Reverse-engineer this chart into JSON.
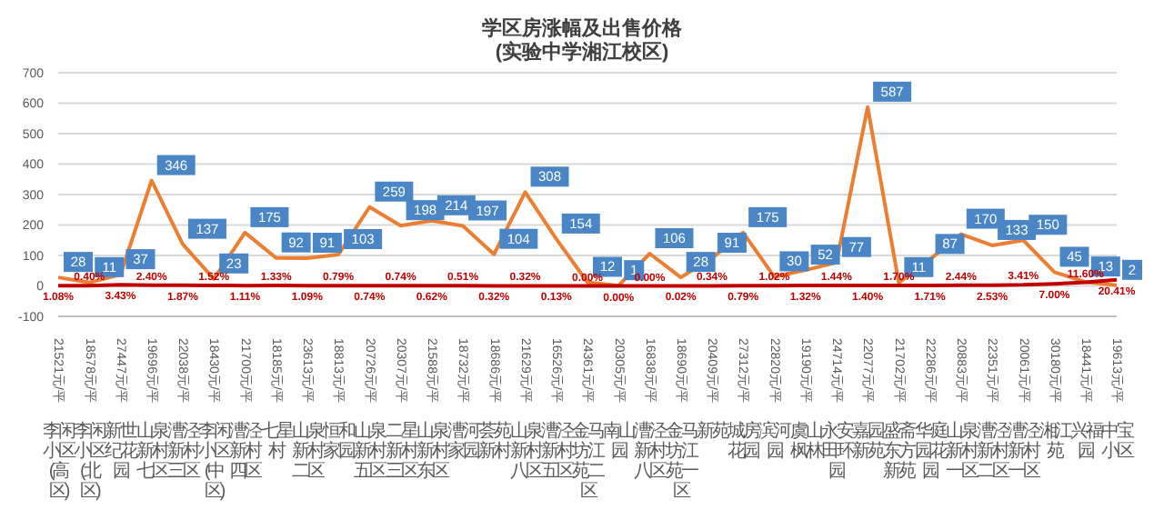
{
  "chart_data": {
    "type": "line",
    "title": "学区房涨幅及出售价格",
    "subtitle": "(实验中学湘江校区)",
    "categories": [
      "21521元/平李闲小区(高区)",
      "18578元/平李闲小区(北区)",
      "27447元/平新世纪花园",
      "19696元/平山泉新村七区",
      "22038元/平漕泾新村三区",
      "18430元/平李闲小区(中区)",
      "21700元/平漕泾新村四区",
      "18185元/平七星村",
      "23613元/平山泉新村二区",
      "18813元/平恒和家园",
      "20726元/平山泉新村五区",
      "20307元/平二星新村三区",
      "21588元/平山泉新村东区",
      "18732元/平漕河家园",
      "18686元/平荟苑新村",
      "21629元/平山泉新村八区",
      "16526元/平漕泾新村五区",
      "24361元/平金马坊江苑二区",
      "20305元/平南山园",
      "16838元/平漕泾新村八区",
      "18690元/平金马坊江苑一区",
      "20409元/平新苑",
      "27312元/平城房花园",
      "22820元/平滨河园",
      "19190元/平虞山枫林",
      "24714元/平永安田环园",
      "22077元/平嘉园新苑",
      "21702元/平盛斋东方新苑",
      "22286元/平华庭园花园",
      "20883元/平山泉新村一区",
      "22351元/平漕泾新村二区",
      "20061元/平漕泾新村一区",
      "30180元/平湘江苑",
      "18441元/平兴福园",
      "19613元/平中宝小区"
    ],
    "series": [
      {
        "color": "#ed7d31",
        "values": [
          28,
          11,
          37,
          346,
          137,
          23,
          175,
          92,
          91,
          103,
          259,
          198,
          214,
          197,
          104,
          308,
          154,
          12,
          1,
          106,
          28,
          91,
          175,
          30,
          52,
          77,
          587,
          11,
          87,
          170,
          133,
          150,
          45,
          13,
          2
        ]
      },
      {
        "color": "#c00000",
        "values": [
          1.08,
          0.4,
          3.43,
          2.4,
          1.87,
          1.52,
          1.11,
          1.33,
          1.09,
          0.79,
          0.74,
          0.74,
          0.62,
          0.51,
          0.32,
          0.32,
          0.13,
          0,
          0,
          0,
          0.02,
          0.34,
          0.79,
          1.02,
          1.32,
          1.44,
          1.4,
          1.7,
          1.71,
          2.44,
          2.53,
          3.41,
          7,
          11.6,
          20.41
        ],
        "value_labels": [
          "1.08%",
          "0.40%",
          "3.43%",
          "2.40%",
          "1.87%",
          "1.52%",
          "1.11%",
          "1.33%",
          "1.09%",
          "0.79%",
          "0.74%",
          "0.74%",
          "0.62%",
          "0.51%",
          "0.32%",
          "0.32%",
          "0.13%",
          "0.00%",
          "0.00%",
          "0.00%",
          "0.02%",
          "0.34%",
          "0.79%",
          "1.02%",
          "1.32%",
          "1.44%",
          "1.40%",
          "1.70%",
          "1.71%",
          "2.44%",
          "2.53%",
          "3.41%",
          "7.00%",
          "11.60%",
          "20.41%"
        ]
      }
    ],
    "ylim": [
      -100,
      700
    ],
    "yticks": [
      -100,
      0,
      100,
      200,
      300,
      400,
      500,
      600,
      700
    ],
    "grid": "y",
    "data_labels": true,
    "marker": "none",
    "line_style": "solid"
  }
}
